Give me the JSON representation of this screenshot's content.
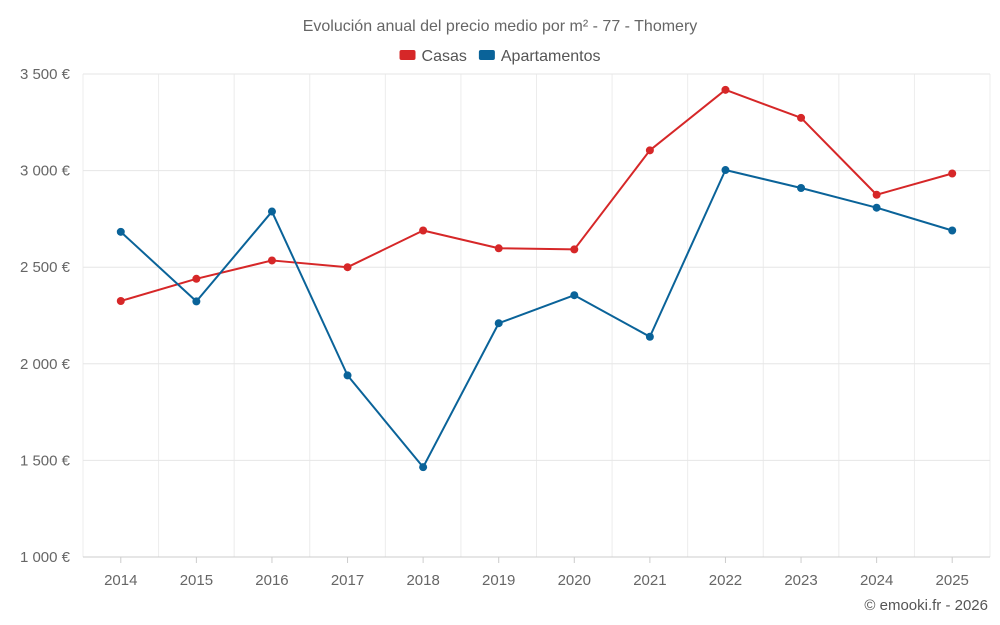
{
  "chart_data": {
    "type": "line",
    "title": "Evolución anual del precio medio por m² - 77 - Thomery",
    "categories": [
      "2014",
      "2015",
      "2016",
      "2017",
      "2018",
      "2019",
      "2020",
      "2021",
      "2022",
      "2023",
      "2024",
      "2025"
    ],
    "series": [
      {
        "name": "Casas",
        "color": "#d62728",
        "values": [
          2325,
          2440,
          2535,
          2500,
          2690,
          2598,
          2592,
          3105,
          3418,
          3273,
          2875,
          2985
        ]
      },
      {
        "name": "Apartamentos",
        "color": "#0a6399",
        "values": [
          2683,
          2323,
          2788,
          1940,
          1465,
          2210,
          2355,
          2140,
          3003,
          2910,
          2808,
          2690
        ]
      }
    ],
    "y_ticks": [
      "1 000 €",
      "1 500 €",
      "2 000 €",
      "2 500 €",
      "3 000 €",
      "3 500 €"
    ],
    "ylim": [
      1000,
      3500
    ],
    "grid": true,
    "legend_position": "top-center"
  },
  "credit": "© emooki.fr - 2026"
}
